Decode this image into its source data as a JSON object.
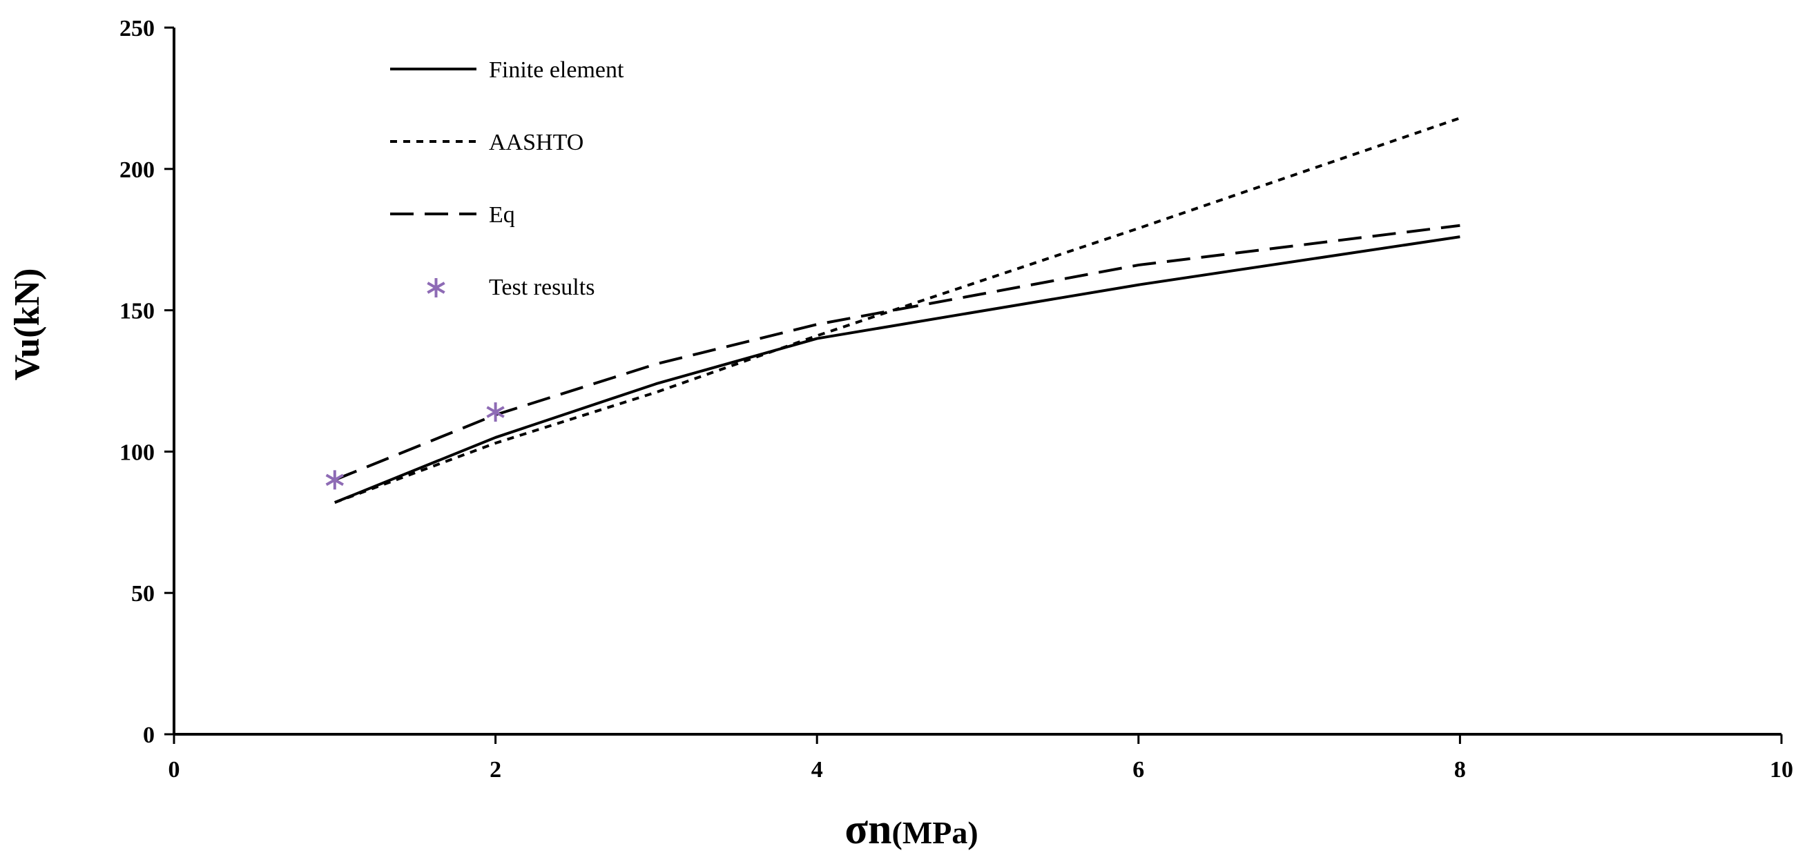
{
  "chart_data": {
    "type": "line",
    "title": "",
    "xlabel_symbol": "σn",
    "xlabel_unit": "(MPa)",
    "ylabel": "Vu(kN)",
    "xlim": [
      0,
      10
    ],
    "ylim": [
      0,
      250
    ],
    "xticks": [
      0,
      2,
      4,
      6,
      8,
      10
    ],
    "yticks": [
      0,
      50,
      100,
      150,
      200,
      250
    ],
    "grid": false,
    "legend_position": "top-left",
    "series": [
      {
        "name": "Finite element",
        "style": "solid",
        "x": [
          1,
          2,
          3,
          4,
          6,
          8
        ],
        "y": [
          82,
          105,
          124,
          140,
          159,
          176
        ]
      },
      {
        "name": "AASHTO",
        "style": "dotted",
        "x": [
          1,
          2,
          3,
          4,
          6,
          8
        ],
        "y": [
          82,
          103,
          121,
          141,
          179,
          218
        ]
      },
      {
        "name": "Eq",
        "style": "dashed",
        "x": [
          1,
          2,
          3,
          4,
          6,
          8
        ],
        "y": [
          90,
          113,
          131,
          145,
          166,
          180
        ]
      },
      {
        "name": "Test results",
        "style": "marker",
        "color": "#8e6bb5",
        "x": [
          1,
          2
        ],
        "y": [
          90,
          114
        ]
      }
    ]
  }
}
